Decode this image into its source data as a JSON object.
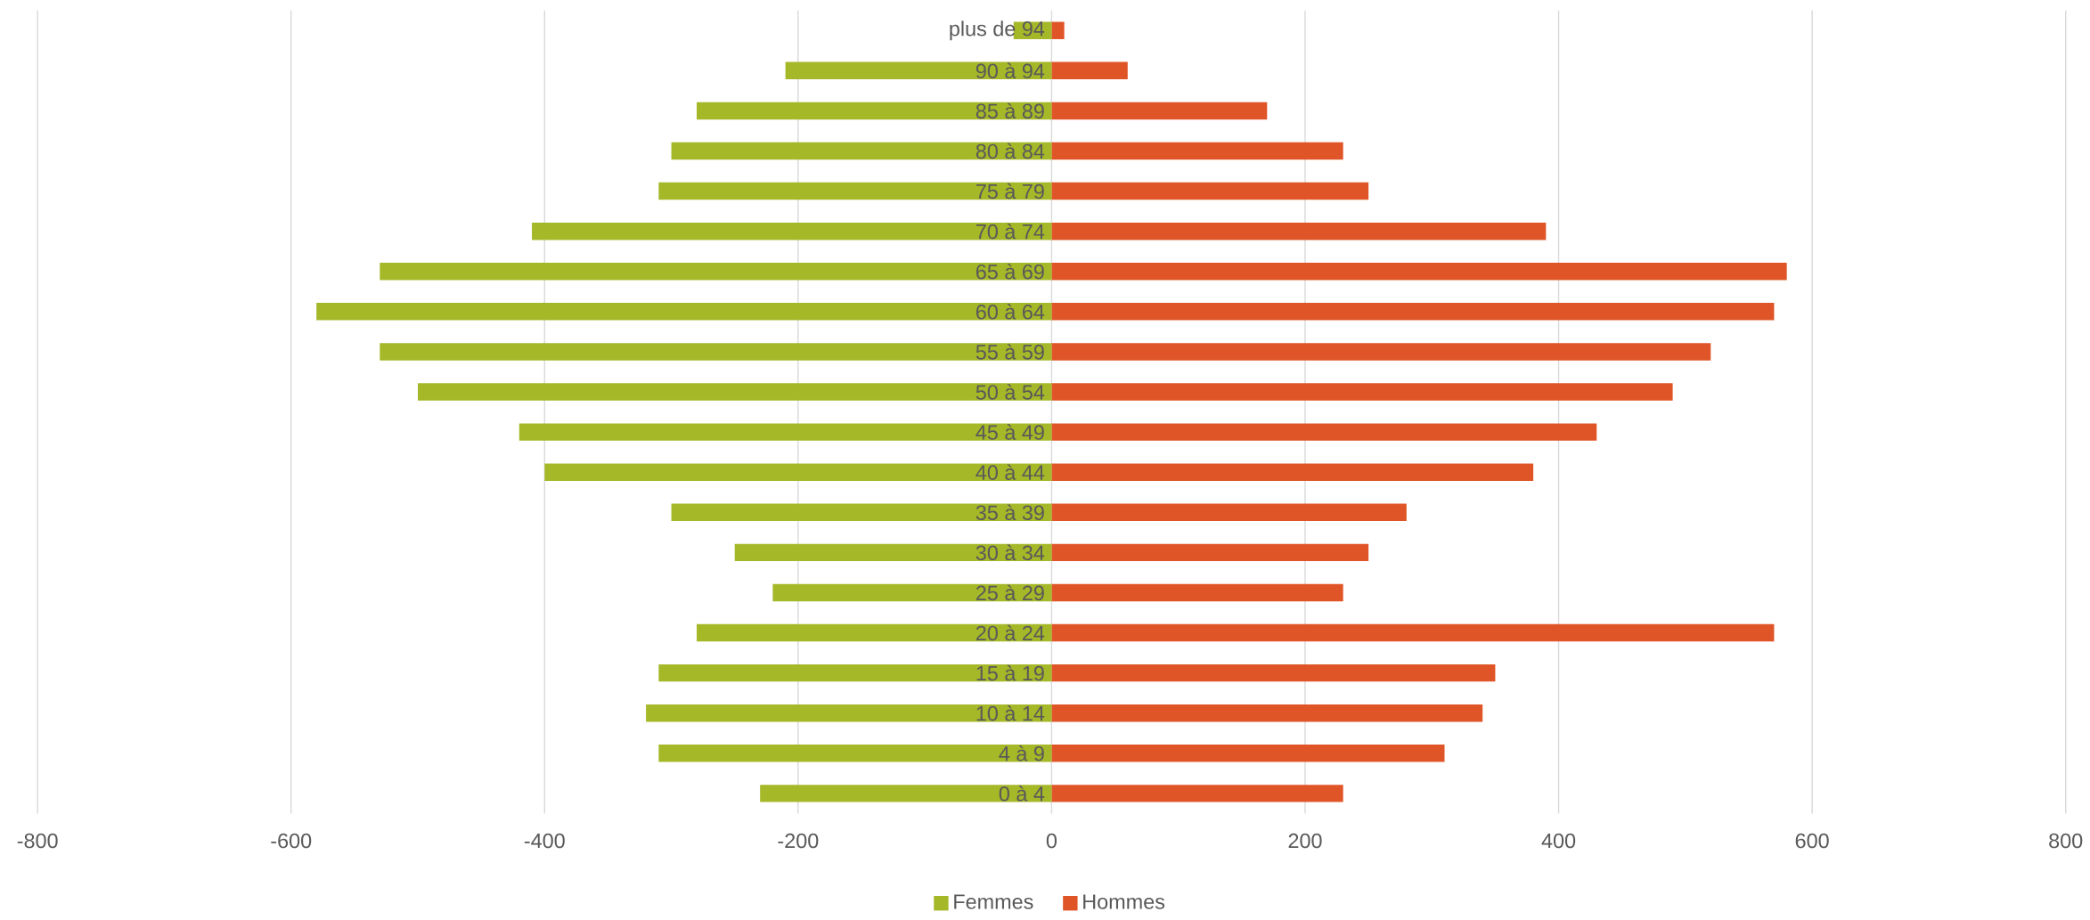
{
  "chart_data": {
    "type": "bar",
    "orientation": "horizontal",
    "categories": [
      "plus de 94",
      "90 à 94",
      "85 à 89",
      "80 à 84",
      "75 à 79",
      "70 à 74",
      "65 à 69",
      "60 à 64",
      "55 à 59",
      "50 à 54",
      "45 à 49",
      "40 à 44",
      "35 à 39",
      "30 à 34",
      "25 à 29",
      "20 à 24",
      "15 à 19",
      "10 à 14",
      "4 à 9",
      "0 à 4"
    ],
    "series": [
      {
        "name": "Femmes",
        "color": "#a5b828",
        "values": [
          -30,
          -210,
          -280,
          -300,
          -310,
          -410,
          -530,
          -580,
          -530,
          -500,
          -420,
          -400,
          -300,
          -250,
          -220,
          -280,
          -310,
          -320,
          -310,
          -230
        ]
      },
      {
        "name": "Hommes",
        "color": "#e05527",
        "values": [
          10,
          60,
          170,
          230,
          250,
          390,
          580,
          570,
          520,
          490,
          430,
          380,
          280,
          250,
          230,
          570,
          350,
          340,
          310,
          230
        ]
      }
    ],
    "xlim": [
      -800,
      800
    ],
    "xticks": [
      -800,
      -600,
      -400,
      -200,
      0,
      200,
      400,
      600,
      800
    ],
    "grid": "x",
    "legend": "bottom",
    "stacked": true
  }
}
